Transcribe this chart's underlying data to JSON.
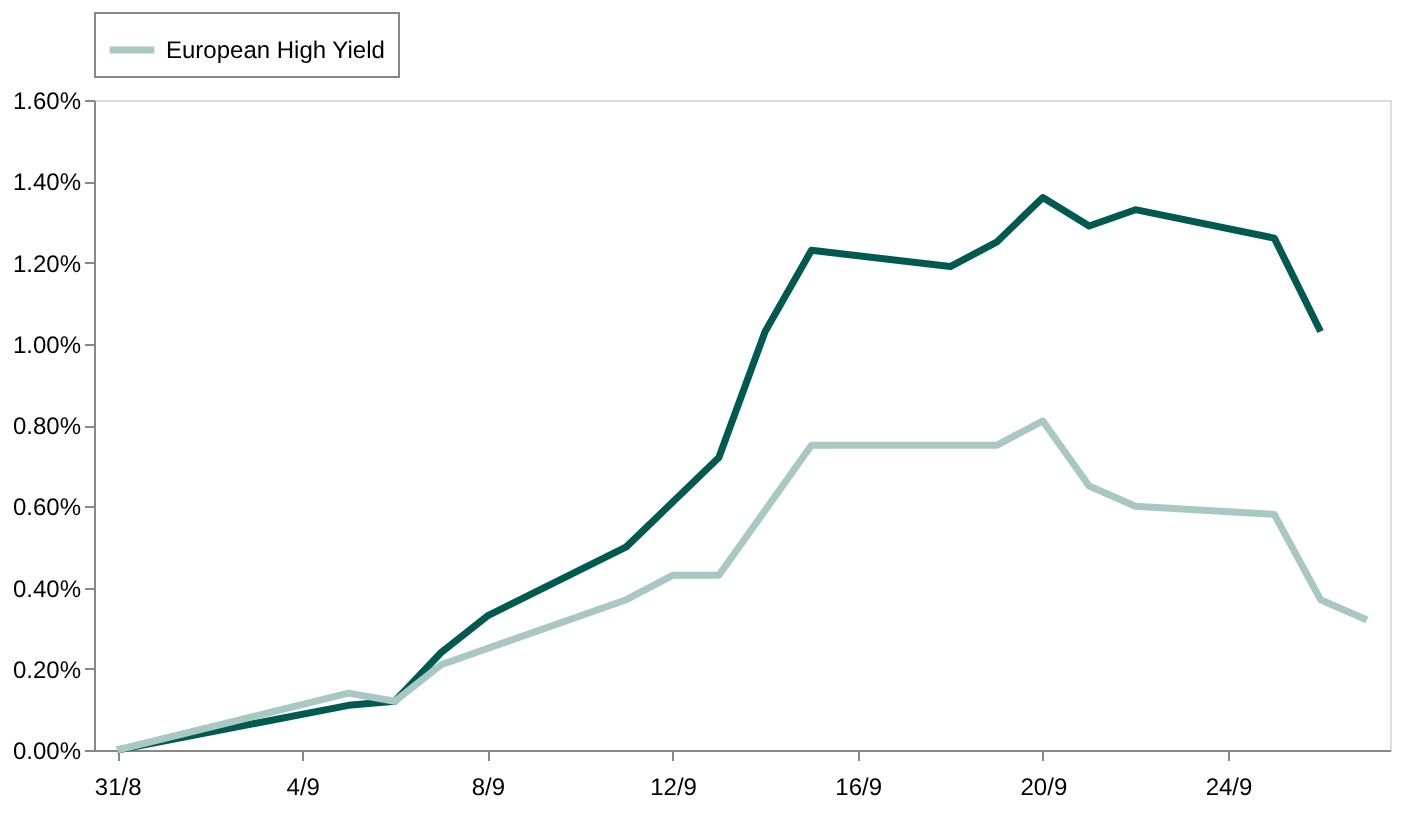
{
  "chart_data": {
    "type": "line",
    "categories": [
      "31/8",
      null,
      null,
      null,
      "4/9",
      null,
      null,
      null,
      "8/9",
      null,
      null,
      null,
      "12/9",
      null,
      null,
      null,
      "16/9",
      null,
      null,
      null,
      "20/9",
      null,
      null,
      null,
      "24/9",
      null,
      null,
      null
    ],
    "series": [
      {
        "color": "#005a50",
        "values": [
          0,
          null,
          null,
          null,
          null,
          0.11,
          0.12,
          0.24,
          0.33,
          null,
          null,
          0.5,
          null,
          0.72,
          1.03,
          1.23,
          null,
          null,
          1.19,
          1.25,
          1.36,
          1.29,
          1.33,
          null,
          null,
          1.26,
          1.03,
          null
        ]
      },
      {
        "name": "European High Yield",
        "color": "#a9c8c4",
        "values": [
          0,
          null,
          null,
          null,
          null,
          0.14,
          0.12,
          0.21,
          null,
          null,
          null,
          0.37,
          0.43,
          0.43,
          0.59,
          0.75,
          null,
          null,
          null,
          0.75,
          0.81,
          0.65,
          0.6,
          null,
          null,
          0.58,
          0.37,
          0.32
        ]
      }
    ],
    "ylim": [
      0,
      1.6
    ],
    "yticks": [
      {
        "value": 0,
        "label": "0.00%"
      },
      {
        "value": 0.2,
        "label": "0.20%"
      },
      {
        "value": 0.4,
        "label": "0.40%"
      },
      {
        "value": 0.6,
        "label": "0.60%"
      },
      {
        "value": 0.8,
        "label": "0.80%"
      },
      {
        "value": 1.0,
        "label": "1.00%"
      },
      {
        "value": 1.2,
        "label": "1.20%"
      },
      {
        "value": 1.4,
        "label": "1.40%"
      },
      {
        "value": 1.6,
        "label": "1.60%"
      }
    ],
    "grid": false,
    "legend": "top",
    "marker": "none",
    "line_style": "solid"
  }
}
